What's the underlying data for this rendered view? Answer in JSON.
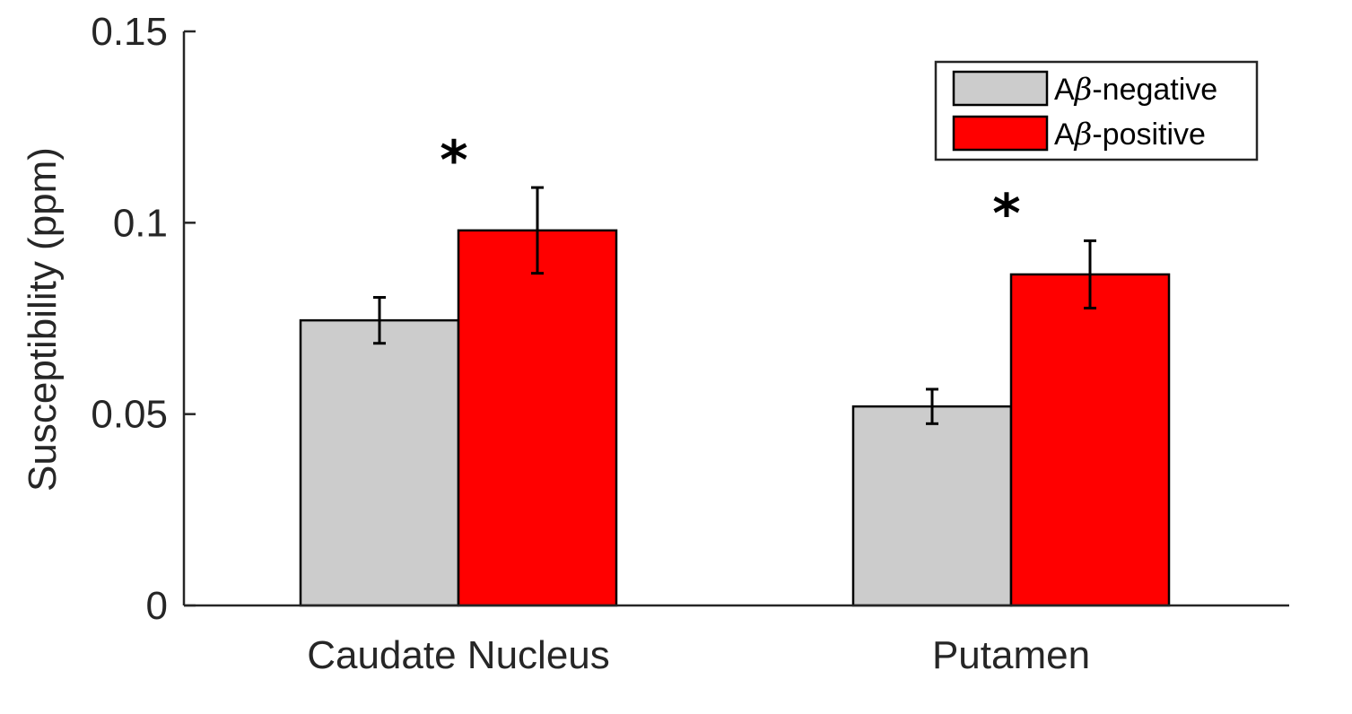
{
  "chart_data": {
    "type": "bar",
    "categories": [
      "Caudate Nucleus",
      "Putamen"
    ],
    "series": [
      {
        "name_prefix": "A",
        "name_symbol": "β",
        "name_suffix": "-negative",
        "color": "#cccccc",
        "values": [
          0.0745,
          0.052
        ],
        "errors": [
          0.006,
          0.0045
        ]
      },
      {
        "name_prefix": "A",
        "name_symbol": "β",
        "name_suffix": "-positive",
        "color": "#ff0000",
        "values": [
          0.098,
          0.0865
        ],
        "errors": [
          0.0112,
          0.0088
        ]
      }
    ],
    "significance": [
      "*",
      "*"
    ],
    "ylabel": "Susceptibility (ppm)",
    "xlabel": "",
    "ylim": [
      0,
      0.15
    ],
    "yticks": [
      "0",
      "0.05",
      "0.1",
      "0.15"
    ],
    "ytick_values": [
      0,
      0.05,
      0.1,
      0.15
    ],
    "grid": false,
    "legend_position": "top-right"
  }
}
